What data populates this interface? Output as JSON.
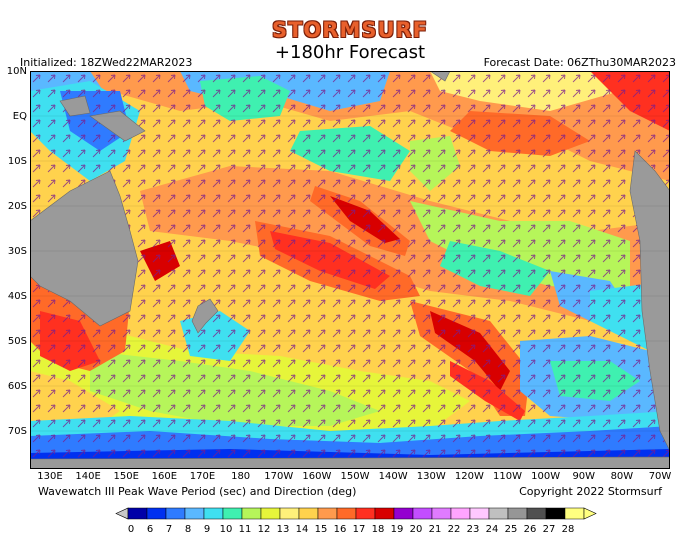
{
  "header": {
    "brand": "STORMSURF",
    "title": "+180hr Forecast",
    "initialized": "Initialized: 18ZWed22MAR2023",
    "forecast_date": "Forecast Date: 06ZThu30MAR2023"
  },
  "axes": {
    "lat_labels": [
      "10N",
      "EQ",
      "10S",
      "20S",
      "30S",
      "40S",
      "50S",
      "60S",
      "70S"
    ],
    "lon_labels": [
      "130E",
      "140E",
      "150E",
      "160E",
      "170E",
      "180",
      "170W",
      "160W",
      "150W",
      "140W",
      "130W",
      "120W",
      "110W",
      "100W",
      "90W",
      "80W",
      "70W"
    ]
  },
  "footer": {
    "left": "Wavewatch III Peak Wave Period (sec) and Direction (deg)",
    "right": "Copyright 2022 Stormsurf"
  },
  "legend": {
    "values": [
      "0",
      "6",
      "7",
      "8",
      "9",
      "10",
      "11",
      "12",
      "13",
      "14",
      "15",
      "16",
      "17",
      "18",
      "19",
      "20",
      "21",
      "22",
      "23",
      "24",
      "25",
      "26",
      "27",
      "28"
    ],
    "colors": [
      "#0000a8",
      "#0030f0",
      "#2f7bff",
      "#5ab8ff",
      "#3fe0f0",
      "#3ff0b0",
      "#b6f55a",
      "#e6f53a",
      "#fff07a",
      "#ffd24d",
      "#ff9a4d",
      "#ff6a28",
      "#ff3020",
      "#d80000",
      "#9400d0",
      "#c34dff",
      "#e07bff",
      "#ffa4ff",
      "#ffc8ff",
      "#c0c0c0",
      "#969696",
      "#505050",
      "#000000",
      "#ffff80"
    ]
  }
}
